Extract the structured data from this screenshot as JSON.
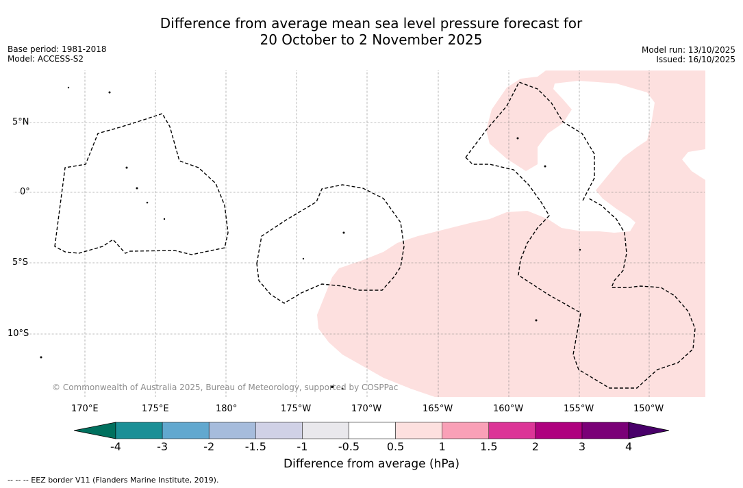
{
  "title_line1": "Difference from average mean sea level pressure forecast for",
  "title_line2": "20 October to 2 November 2025",
  "base_period": "Base period: 1981-2018",
  "model": "Model: ACCESS-S2",
  "model_run": "Model run: 13/10/2025",
  "issued": "Issued: 16/10/2025",
  "lon_labels": [
    "170°E",
    "175°E",
    "180°",
    "175°W",
    "170°W",
    "165°W",
    "160°W",
    "155°W",
    "150°W"
  ],
  "lat_labels": [
    "5°N",
    "0°",
    "5°S",
    "10°S"
  ],
  "copyright": "© Commonwealth of Australia 2025, Bureau of Meteorology, supported by COSPPac",
  "colorbar": {
    "label": "Difference from average (hPa)",
    "ticks": [
      "-4",
      "-3",
      "-2",
      "-1.5",
      "-1",
      "-0.5",
      "0.5",
      "1",
      "1.5",
      "2",
      "3",
      "4"
    ],
    "colors": [
      "#1b8f96",
      "#62a8cf",
      "#a6bcdc",
      "#d0d1e6",
      "#e9e8ec",
      "#ffffff",
      "#fde0df",
      "#f9a0b7",
      "#dc3597",
      "#ae017e",
      "#7a0177"
    ],
    "under_color": "#00705e",
    "over_color": "#49006a"
  },
  "legend_footer": "--  --  -- EEZ border V11 (Flanders Marine Institute, 2019)."
}
